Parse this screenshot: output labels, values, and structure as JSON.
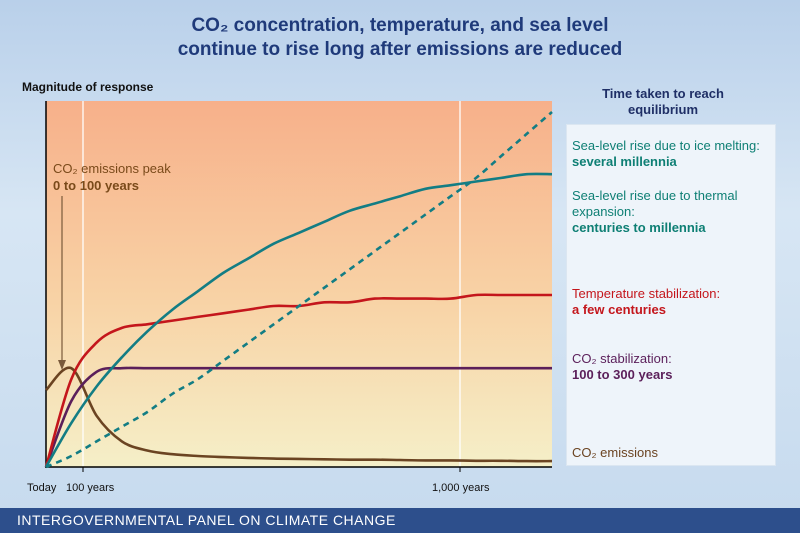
{
  "title_line1": "CO₂ concentration, temperature, and sea level",
  "title_line2": "continue to rise long after emissions are reduced",
  "ylabel": "Magnitude of response",
  "legend_header": "Time taken to reach equilibrium",
  "annotation": {
    "line1": "CO₂ emissions peak",
    "line2": "0 to 100 years"
  },
  "footer": "INTERGOVERNMENTAL PANEL ON CLIMATE CHANGE",
  "legend": [
    {
      "line1": "Sea-level rise due to ice melting:",
      "line2": "several millennia",
      "color": "#0e7f74"
    },
    {
      "line1": "Sea-level rise due to thermal expansion:",
      "line2": "centuries to millennia",
      "color": "#0e7f74"
    },
    {
      "line1": "Temperature stabilization:",
      "line2": "a few centuries",
      "color": "#c4161c"
    },
    {
      "line1": "CO₂ stabilization:",
      "line2": "100 to 300 years",
      "color": "#5b1f5a"
    },
    {
      "line1": "CO₂ emissions",
      "line2": "",
      "color": "#6b4422"
    }
  ],
  "chart_data": {
    "type": "line",
    "title": "CO₂ concentration, temperature, and sea level continue to rise long after emissions are reduced",
    "ylabel": "Magnitude of response",
    "xlabel": "",
    "x_ticks": [
      "Today",
      "100 years",
      "1,000 years"
    ],
    "x": [
      0,
      0.05,
      0.1,
      0.15,
      0.2,
      0.25,
      0.3,
      0.35,
      0.4,
      0.45,
      0.5,
      0.55,
      0.6,
      0.65,
      0.7,
      0.75,
      0.8,
      0.85,
      0.9,
      0.95,
      1.0
    ],
    "series": [
      {
        "name": "CO₂ emissions",
        "values": [
          0.21,
          0.27,
          0.14,
          0.07,
          0.045,
          0.035,
          0.03,
          0.027,
          0.025,
          0.023,
          0.022,
          0.021,
          0.02,
          0.02,
          0.019,
          0.018,
          0.018,
          0.017,
          0.017,
          0.016,
          0.016
        ]
      },
      {
        "name": "CO₂ stabilization",
        "values": [
          0.0,
          0.18,
          0.26,
          0.27,
          0.27,
          0.27,
          0.27,
          0.27,
          0.27,
          0.27,
          0.27,
          0.27,
          0.27,
          0.27,
          0.27,
          0.27,
          0.27,
          0.27,
          0.27,
          0.27,
          0.27
        ]
      },
      {
        "name": "Temperature stabilization",
        "values": [
          0.0,
          0.24,
          0.34,
          0.38,
          0.39,
          0.4,
          0.41,
          0.42,
          0.43,
          0.44,
          0.44,
          0.45,
          0.45,
          0.46,
          0.46,
          0.46,
          0.46,
          0.47,
          0.47,
          0.47,
          0.47
        ]
      },
      {
        "name": "Sea-level rise due to thermal expansion",
        "values": [
          0.0,
          0.12,
          0.22,
          0.3,
          0.37,
          0.43,
          0.48,
          0.53,
          0.57,
          0.61,
          0.64,
          0.67,
          0.7,
          0.72,
          0.74,
          0.76,
          0.77,
          0.78,
          0.79,
          0.8,
          0.8
        ]
      },
      {
        "name": "Sea-level rise due to ice melting",
        "values": [
          0.0,
          0.03,
          0.07,
          0.11,
          0.15,
          0.2,
          0.24,
          0.29,
          0.34,
          0.39,
          0.44,
          0.49,
          0.54,
          0.59,
          0.64,
          0.69,
          0.74,
          0.79,
          0.85,
          0.91,
          0.97
        ]
      }
    ],
    "ylim": [
      0,
      1
    ]
  }
}
